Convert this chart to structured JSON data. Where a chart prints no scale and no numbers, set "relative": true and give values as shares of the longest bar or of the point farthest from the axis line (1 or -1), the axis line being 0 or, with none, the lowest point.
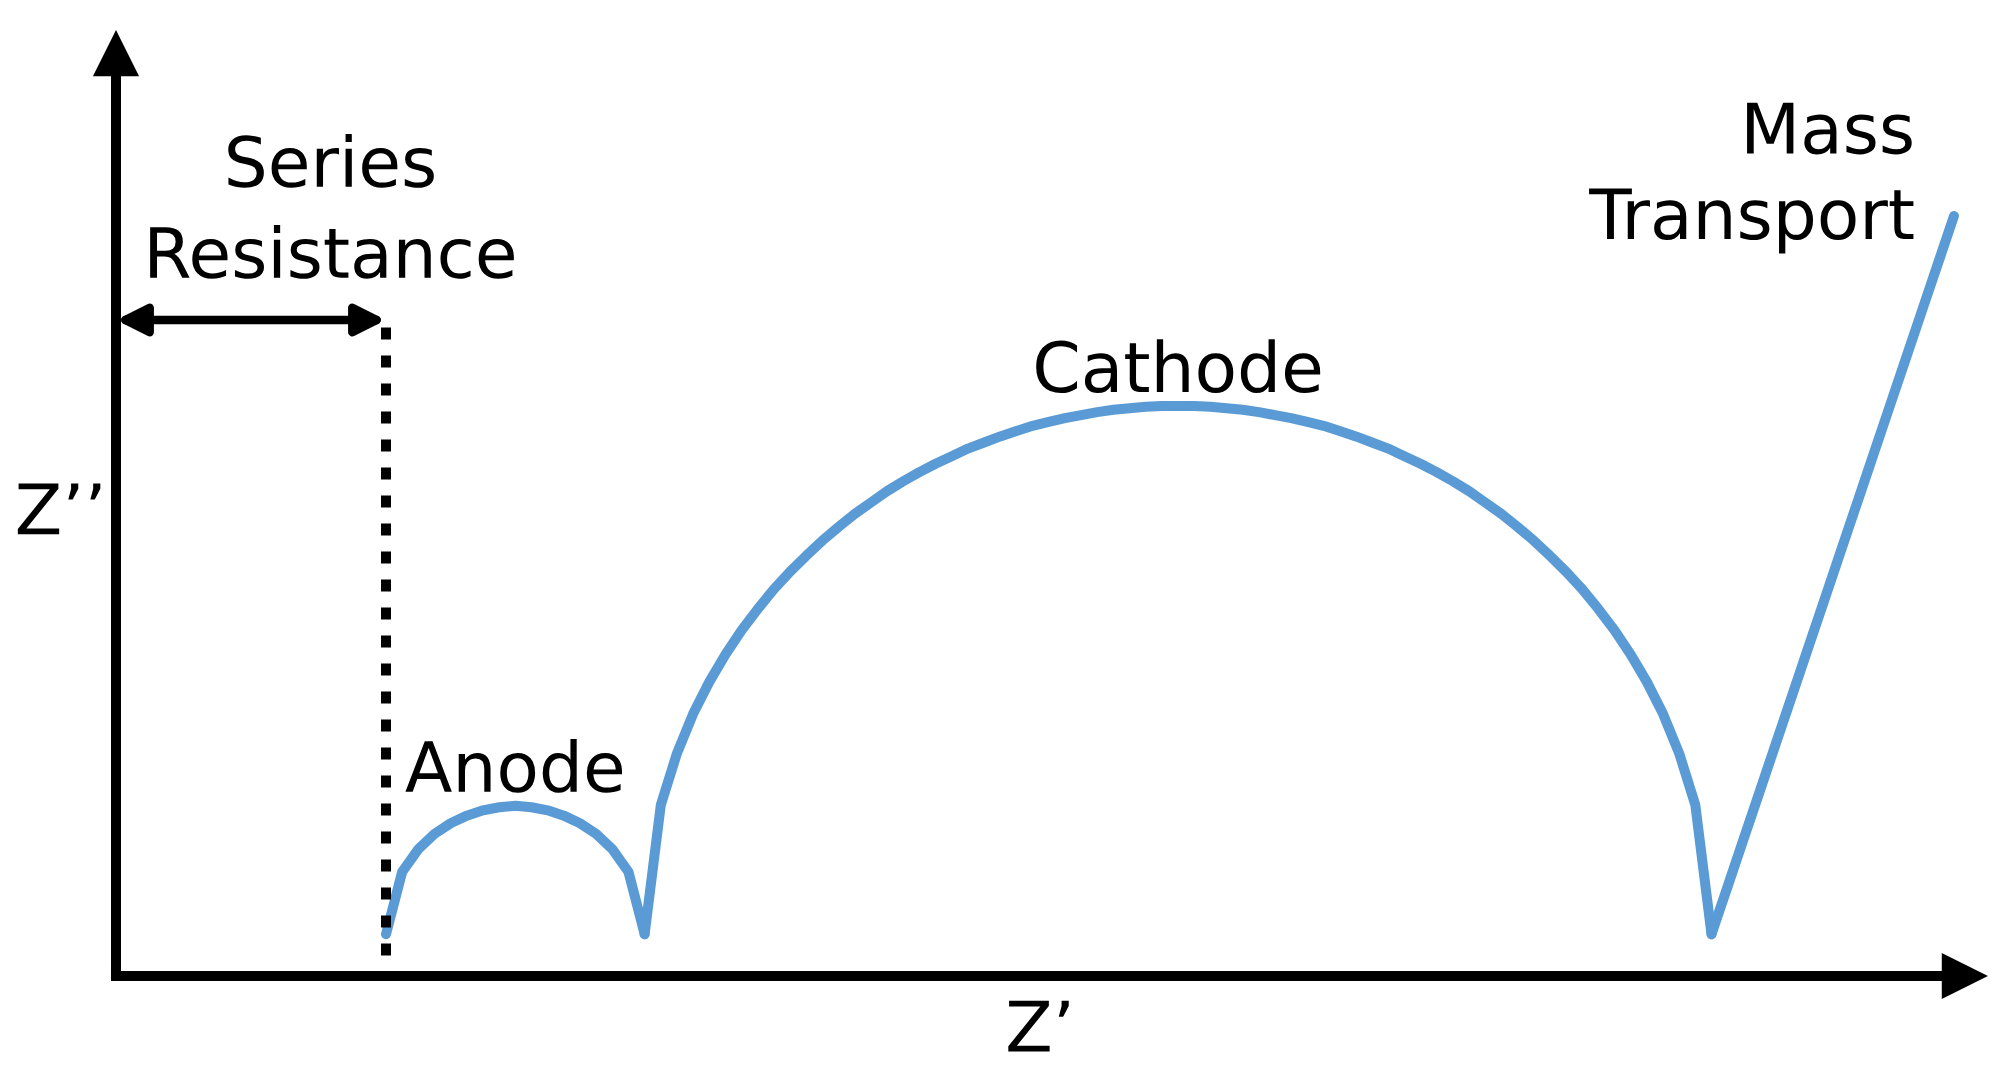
{
  "chart_data": {
    "type": "line",
    "xlabel": "Z’",
    "ylabel": "Z’’",
    "relative": true,
    "categories": [
      null,
      null,
      null,
      null,
      null,
      null,
      null,
      null,
      null,
      null,
      null,
      null,
      null,
      null,
      null,
      null,
      null,
      null,
      null,
      null,
      null,
      null,
      null,
      null,
      null,
      null,
      null,
      null,
      null,
      null,
      null,
      null,
      null,
      null,
      null,
      null,
      null,
      null,
      null,
      null,
      null,
      null,
      null,
      null,
      null,
      null,
      null,
      null,
      null,
      null,
      null,
      null,
      null,
      null,
      null,
      null,
      null,
      null,
      null,
      null,
      null,
      null,
      null,
      null,
      null,
      null,
      null,
      null,
      null,
      null,
      null,
      null,
      null,
      null,
      null,
      null,
      null,
      null,
      null,
      null,
      null,
      null,
      null,
      null,
      null,
      null,
      null,
      null,
      null,
      null,
      null,
      null,
      null,
      null,
      null,
      null,
      null,
      null
    ],
    "series": [
      {
        "name": "Anode",
        "color": "#5b9bd5",
        "values": [
          0.055,
          0.137,
          0.167,
          0.187,
          0.201,
          0.211,
          0.218,
          0.222,
          0.224,
          0.222,
          0.218,
          0.211,
          0.201,
          0.187,
          0.167,
          0.137,
          0.055,
          null,
          null,
          null,
          null,
          null,
          null,
          null,
          null,
          null,
          null,
          null,
          null,
          null,
          null,
          null,
          null,
          null,
          null,
          null,
          null,
          null,
          null,
          null,
          null,
          null,
          null,
          null,
          null,
          null,
          null,
          null,
          null,
          null,
          null,
          null,
          null,
          null,
          null,
          null,
          null,
          null,
          null,
          null,
          null,
          null,
          null,
          null,
          null,
          null,
          null,
          null,
          null,
          null,
          null,
          null,
          null,
          null,
          null,
          null,
          null,
          null,
          null,
          null,
          null,
          null,
          null,
          null,
          null,
          null,
          null,
          null,
          null,
          null,
          null,
          null,
          null,
          null,
          null,
          null,
          null,
          null
        ]
      },
      {
        "name": "Cathode",
        "color": "#5b9bd5",
        "values": [
          null,
          null,
          null,
          null,
          null,
          null,
          null,
          null,
          null,
          null,
          null,
          null,
          null,
          null,
          null,
          null,
          0.055,
          0.225,
          0.293,
          0.345,
          0.387,
          0.423,
          0.455,
          0.483,
          0.509,
          0.532,
          0.553,
          0.573,
          0.591,
          0.608,
          0.623,
          0.638,
          0.651,
          0.663,
          0.674,
          0.684,
          0.694,
          0.702,
          0.71,
          0.717,
          0.724,
          0.729,
          0.734,
          0.738,
          0.742,
          0.745,
          0.747,
          0.749,
          0.75,
          0.75,
          0.75,
          0.749,
          0.747,
          0.745,
          0.742,
          0.738,
          0.734,
          0.729,
          0.724,
          0.717,
          0.71,
          0.702,
          0.694,
          0.684,
          0.674,
          0.663,
          0.651,
          0.638,
          0.623,
          0.608,
          0.591,
          0.573,
          0.553,
          0.532,
          0.509,
          0.483,
          0.455,
          0.423,
          0.387,
          0.345,
          0.293,
          0.225,
          0.055,
          null,
          null,
          null,
          null,
          null,
          null,
          null,
          null,
          null,
          null,
          null,
          null,
          null,
          null,
          null
        ]
      },
      {
        "name": "Mass\nTransport",
        "color": "#5b9bd5",
        "values": [
          null,
          null,
          null,
          null,
          null,
          null,
          null,
          null,
          null,
          null,
          null,
          null,
          null,
          null,
          null,
          null,
          null,
          null,
          null,
          null,
          null,
          null,
          null,
          null,
          null,
          null,
          null,
          null,
          null,
          null,
          null,
          null,
          null,
          null,
          null,
          null,
          null,
          null,
          null,
          null,
          null,
          null,
          null,
          null,
          null,
          null,
          null,
          null,
          null,
          null,
          null,
          null,
          null,
          null,
          null,
          null,
          null,
          null,
          null,
          null,
          null,
          null,
          null,
          null,
          null,
          null,
          null,
          null,
          null,
          null,
          null,
          null,
          null,
          null,
          null,
          null,
          null,
          null,
          null,
          null,
          null,
          null,
          0.055,
          0.118,
          0.181,
          0.244,
          0.307,
          0.37,
          0.433,
          0.496,
          0.559,
          0.622,
          0.685,
          0.748,
          0.811,
          0.874,
          0.937,
          1
        ]
      }
    ],
    "annotations": [
      "Series\nResistance"
    ]
  }
}
